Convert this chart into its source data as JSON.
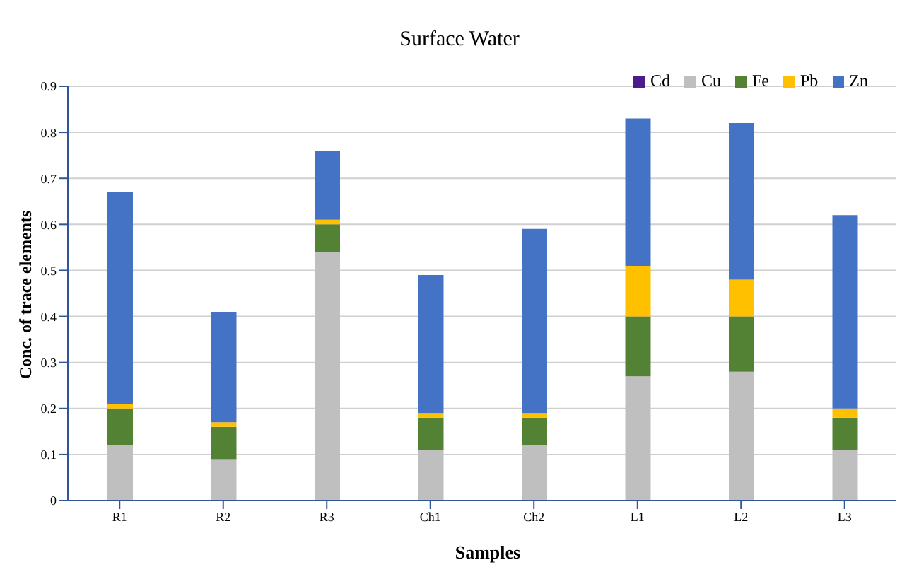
{
  "chart_data": {
    "type": "bar",
    "title": "Surface Water",
    "xlabel": "Samples",
    "ylabel": "Conc. of trace elements",
    "categories": [
      "R1",
      "R2",
      "R3",
      "Ch1",
      "Ch2",
      "L1",
      "L2",
      "L3"
    ],
    "stacked": true,
    "series": [
      {
        "name": "Cd",
        "color": "#4b1c8c",
        "values": [
          0,
          0,
          0,
          0,
          0,
          0,
          0,
          0
        ]
      },
      {
        "name": "Cu",
        "color": "#bfbfbf",
        "values": [
          0.12,
          0.09,
          0.54,
          0.11,
          0.12,
          0.27,
          0.28,
          0.11
        ]
      },
      {
        "name": "Fe",
        "color": "#548235",
        "values": [
          0.08,
          0.07,
          0.06,
          0.07,
          0.06,
          0.13,
          0.12,
          0.07
        ]
      },
      {
        "name": "Pb",
        "color": "#ffc000",
        "values": [
          0.01,
          0.01,
          0.01,
          0.01,
          0.01,
          0.11,
          0.08,
          0.02
        ]
      },
      {
        "name": "Zn",
        "color": "#4472c4",
        "values": [
          0.46,
          0.24,
          0.15,
          0.3,
          0.4,
          0.32,
          0.34,
          0.42
        ]
      }
    ],
    "ylim": [
      0,
      0.9
    ],
    "yticks": [
      0,
      0.1,
      0.2,
      0.3,
      0.4,
      0.5,
      0.6,
      0.7,
      0.8,
      0.9
    ],
    "grid": "y",
    "legend": "top right"
  }
}
